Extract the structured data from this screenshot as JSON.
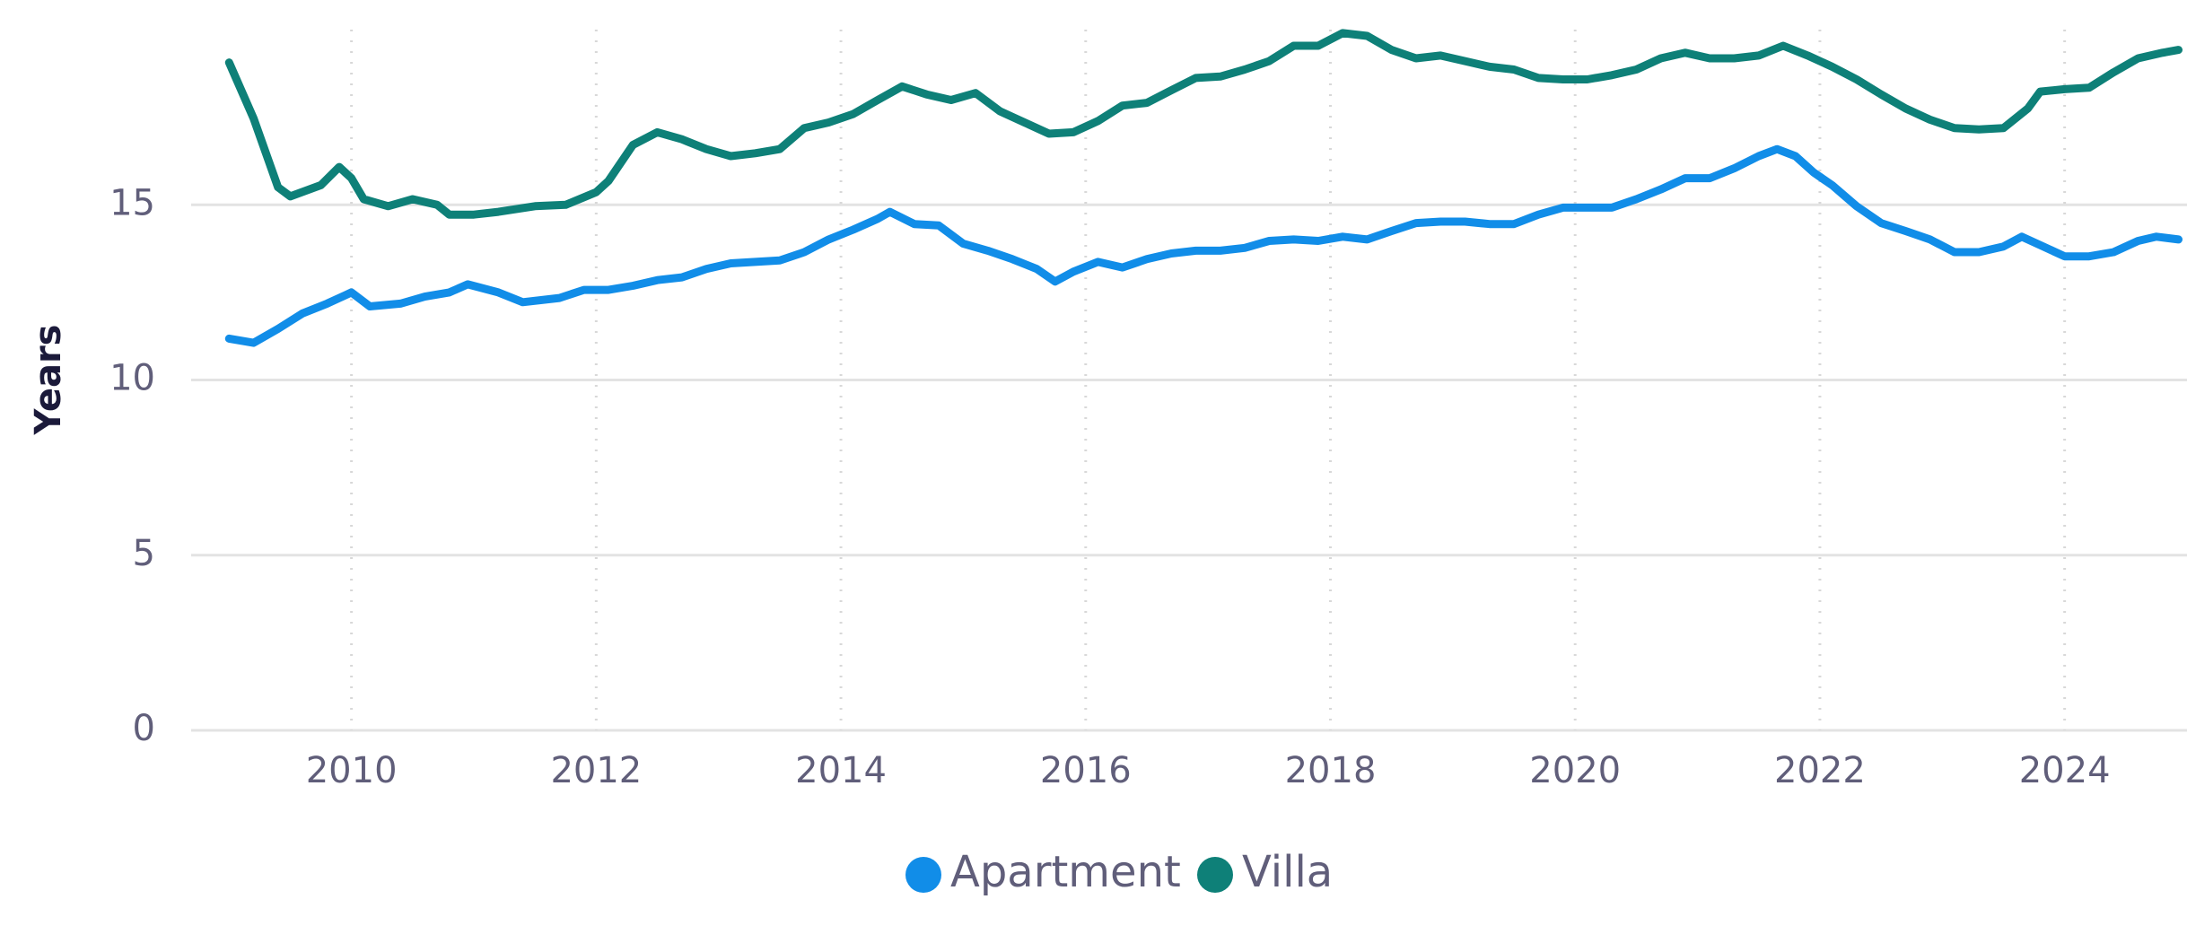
{
  "chart_data": {
    "type": "line",
    "y_label": "Years",
    "xlim": [
      2008.69,
      2025.0
    ],
    "xticks": [
      2010,
      2012,
      2014,
      2016,
      2018,
      2020,
      2022,
      2024
    ],
    "ylim": [
      0,
      20
    ],
    "yticks": [
      0,
      5,
      10,
      15
    ],
    "grid": true,
    "legend": "bottom",
    "series": [
      {
        "name": "Apartment",
        "color": "#118de8",
        "x": [
          2009.0,
          2009.2,
          2009.4,
          2009.6,
          2009.8,
          2010.0,
          2010.15,
          2010.4,
          2010.6,
          2010.8,
          2010.95,
          2011.2,
          2011.4,
          2011.7,
          2011.9,
          2012.1,
          2012.3,
          2012.5,
          2012.7,
          2012.9,
          2013.1,
          2013.3,
          2013.5,
          2013.7,
          2013.9,
          2014.1,
          2014.3,
          2014.4,
          2014.6,
          2014.8,
          2015.0,
          2015.2,
          2015.4,
          2015.6,
          2015.75,
          2015.9,
          2016.1,
          2016.3,
          2016.5,
          2016.7,
          2016.9,
          2017.1,
          2017.3,
          2017.5,
          2017.7,
          2017.9,
          2018.1,
          2018.3,
          2018.5,
          2018.7,
          2018.9,
          2019.1,
          2019.3,
          2019.5,
          2019.7,
          2019.9,
          2020.1,
          2020.3,
          2020.5,
          2020.7,
          2020.9,
          2021.1,
          2021.3,
          2021.5,
          2021.65,
          2021.8,
          2021.95,
          2022.1,
          2022.3,
          2022.5,
          2022.7,
          2022.9,
          2023.1,
          2023.3,
          2023.5,
          2023.65,
          2023.8,
          2024.0,
          2024.2,
          2024.4,
          2024.6,
          2024.75,
          2024.93
        ],
        "values": [
          11.18,
          11.06,
          11.46,
          11.9,
          12.18,
          12.5,
          12.1,
          12.18,
          12.38,
          12.5,
          12.73,
          12.5,
          12.22,
          12.34,
          12.57,
          12.57,
          12.69,
          12.85,
          12.93,
          13.17,
          13.33,
          13.37,
          13.41,
          13.65,
          14.01,
          14.29,
          14.6,
          14.8,
          14.45,
          14.41,
          13.89,
          13.69,
          13.45,
          13.17,
          12.81,
          13.09,
          13.37,
          13.21,
          13.45,
          13.61,
          13.69,
          13.69,
          13.77,
          13.97,
          14.01,
          13.97,
          14.09,
          14.01,
          14.25,
          14.48,
          14.52,
          14.52,
          14.45,
          14.45,
          14.72,
          14.92,
          14.92,
          14.92,
          15.16,
          15.44,
          15.76,
          15.76,
          16.04,
          16.39,
          16.59,
          16.39,
          15.92,
          15.56,
          14.96,
          14.48,
          14.25,
          14.01,
          13.65,
          13.65,
          13.81,
          14.09,
          13.85,
          13.53,
          13.53,
          13.65,
          13.97,
          14.09,
          14.01
        ]
      },
      {
        "name": "Villa",
        "color": "#0e8078",
        "x": [
          2009.0,
          2009.2,
          2009.4,
          2009.5,
          2009.75,
          2009.9,
          2010.0,
          2010.1,
          2010.3,
          2010.5,
          2010.7,
          2010.8,
          2011.0,
          2011.2,
          2011.5,
          2011.75,
          2012.0,
          2012.1,
          2012.3,
          2012.5,
          2012.7,
          2012.9,
          2013.1,
          2013.3,
          2013.5,
          2013.7,
          2013.9,
          2014.1,
          2014.3,
          2014.5,
          2014.7,
          2014.9,
          2015.1,
          2015.3,
          2015.5,
          2015.7,
          2015.9,
          2016.1,
          2016.3,
          2016.5,
          2016.7,
          2016.9,
          2017.1,
          2017.3,
          2017.5,
          2017.7,
          2017.9,
          2018.1,
          2018.3,
          2018.5,
          2018.7,
          2018.9,
          2019.1,
          2019.3,
          2019.5,
          2019.7,
          2019.9,
          2020.1,
          2020.3,
          2020.5,
          2020.7,
          2020.9,
          2021.1,
          2021.3,
          2021.5,
          2021.7,
          2021.9,
          2022.1,
          2022.3,
          2022.5,
          2022.7,
          2022.9,
          2023.1,
          2023.3,
          2023.5,
          2023.7,
          2023.8,
          2024.0,
          2024.2,
          2024.4,
          2024.6,
          2024.8,
          2024.93
        ],
        "values": [
          19.06,
          17.47,
          15.5,
          15.24,
          15.56,
          16.08,
          15.76,
          15.16,
          14.96,
          15.16,
          15.0,
          14.72,
          14.72,
          14.8,
          14.96,
          15.0,
          15.36,
          15.68,
          16.71,
          17.07,
          16.87,
          16.59,
          16.39,
          16.47,
          16.59,
          17.19,
          17.35,
          17.59,
          17.99,
          18.38,
          18.15,
          17.99,
          18.19,
          17.67,
          17.35,
          17.03,
          17.07,
          17.39,
          17.83,
          17.91,
          18.27,
          18.62,
          18.66,
          18.86,
          19.1,
          19.54,
          19.54,
          19.9,
          19.82,
          19.42,
          19.18,
          19.26,
          19.1,
          18.94,
          18.86,
          18.62,
          18.58,
          18.58,
          18.7,
          18.86,
          19.18,
          19.34,
          19.18,
          19.18,
          19.26,
          19.54,
          19.26,
          18.94,
          18.58,
          18.15,
          17.75,
          17.43,
          17.19,
          17.15,
          17.19,
          17.75,
          18.23,
          18.3,
          18.34,
          18.78,
          19.18,
          19.34,
          19.42
        ]
      }
    ]
  }
}
